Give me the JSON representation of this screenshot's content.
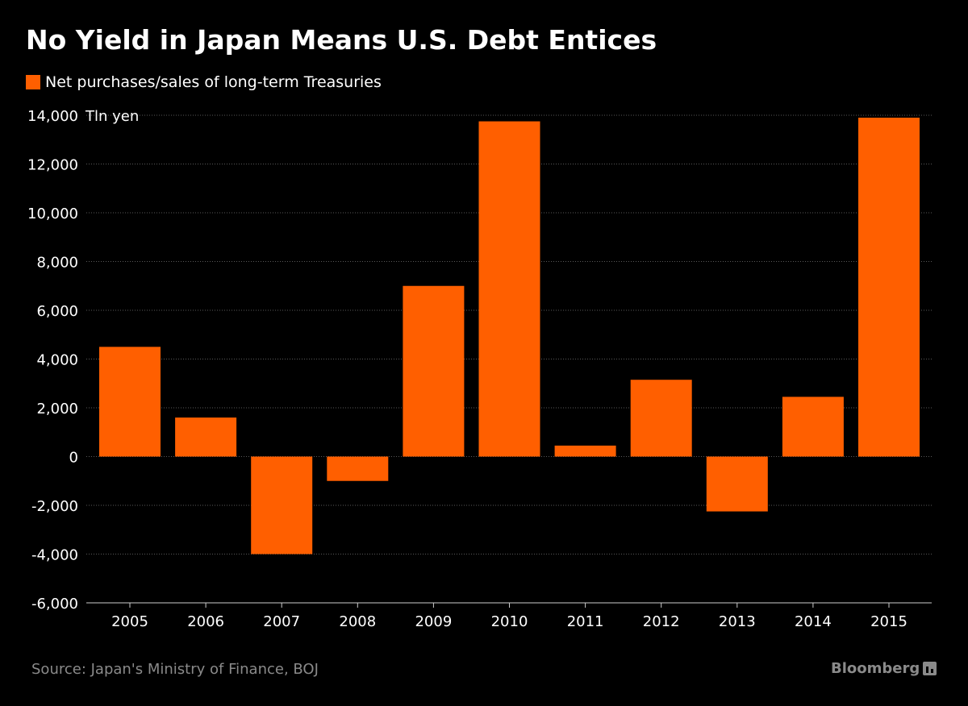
{
  "colors": {
    "bar": "#ff5f00",
    "background": "#000000",
    "grid": "#5a5a5a",
    "axis": "#cccccc",
    "muted_text": "#8a8a8a"
  },
  "header": {
    "title": "No Yield in Japan Means U.S. Debt Entices"
  },
  "legend": {
    "items": [
      {
        "label": "Net purchases/sales of long-term Treasuries",
        "icon": "orange-square-swatch"
      }
    ]
  },
  "footer": {
    "source": "Source: Japan's Ministry of Finance, BOJ",
    "brand": "Bloomberg",
    "brand_icon": "bloomberg-bar-chart-icon"
  },
  "chart_data": {
    "type": "bar",
    "title": "No Yield in Japan Means U.S. Debt Entices",
    "unit_label": "Tln yen",
    "categories": [
      "2005",
      "2006",
      "2007",
      "2008",
      "2009",
      "2010",
      "2011",
      "2012",
      "2013",
      "2014",
      "2015"
    ],
    "series": [
      {
        "name": "Net purchases/sales of long-term Treasuries",
        "values": [
          4500,
          1600,
          -4000,
          -1000,
          7000,
          13750,
          450,
          3150,
          -2250,
          2450,
          13900
        ]
      }
    ],
    "ylim": [
      -6000,
      14000
    ],
    "yticks": [
      14000,
      12000,
      10000,
      8000,
      6000,
      4000,
      2000,
      0,
      -2000,
      -4000,
      -6000
    ],
    "ytick_labels": [
      "14,000",
      "12,000",
      "10,000",
      "8,000",
      "6,000",
      "4,000",
      "2,000",
      "0",
      "-2,000",
      "-4,000",
      "-6,000"
    ],
    "grid": true,
    "legend_position": "top-left"
  }
}
